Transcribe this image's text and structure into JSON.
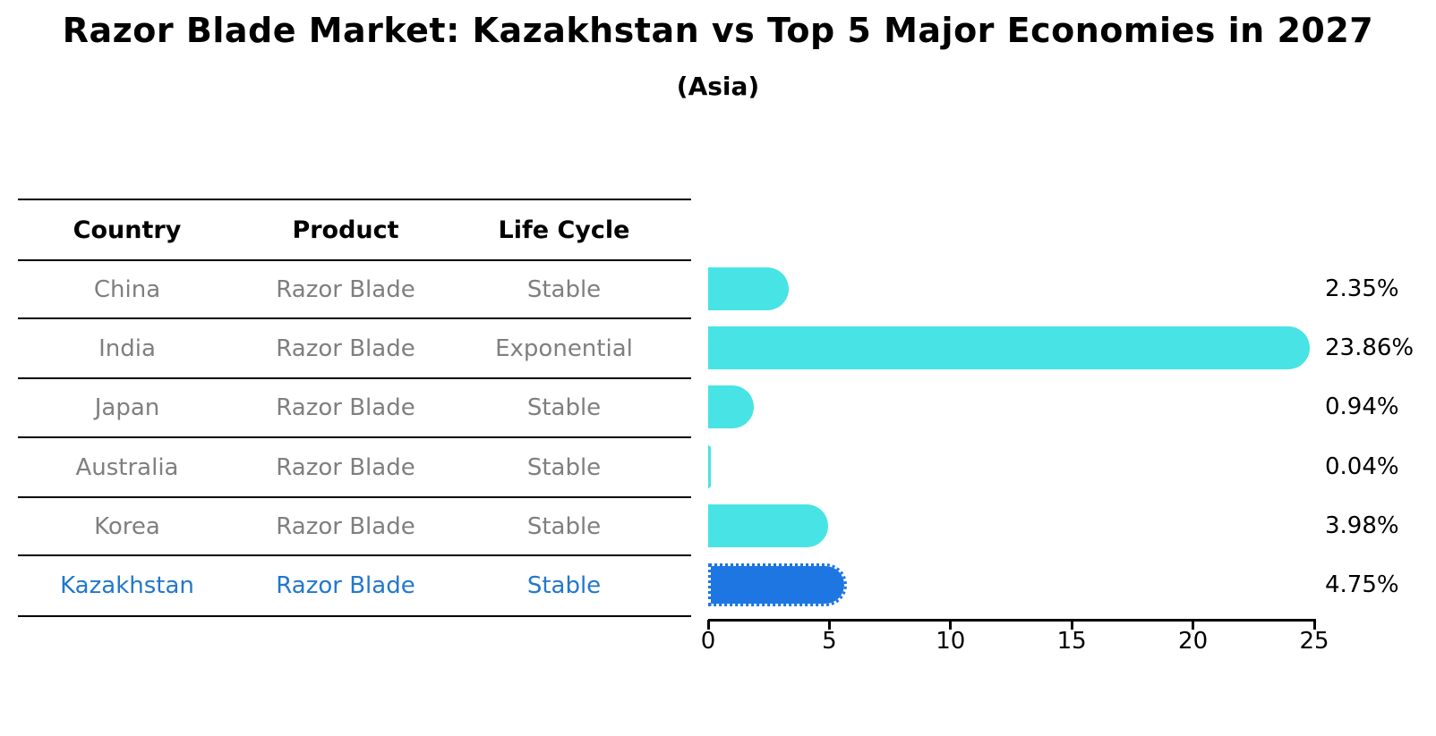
{
  "title": "Razor Blade Market: Kazakhstan vs Top 5 Major Economies in 2027",
  "subtitle": "(Asia)",
  "table": {
    "headers": [
      "Country",
      "Product",
      "Life Cycle"
    ],
    "rows": [
      {
        "country": "China",
        "product": "Razor Blade",
        "life_cycle": "Stable",
        "highlight": false
      },
      {
        "country": "India",
        "product": "Razor Blade",
        "life_cycle": "Exponential",
        "highlight": false
      },
      {
        "country": "Japan",
        "product": "Razor Blade",
        "life_cycle": "Stable",
        "highlight": false
      },
      {
        "country": "Australia",
        "product": "Razor Blade",
        "life_cycle": "Stable",
        "highlight": false
      },
      {
        "country": "Korea",
        "product": "Razor Blade",
        "life_cycle": "Stable",
        "highlight": false
      },
      {
        "country": "Kazakhstan",
        "product": "Razor Blade",
        "life_cycle": "Stable",
        "highlight": true
      }
    ]
  },
  "chart_data": {
    "type": "bar",
    "orientation": "horizontal",
    "title": "Razor Blade Market: Kazakhstan vs Top 5 Major Economies in 2027",
    "subtitle": "(Asia)",
    "categories": [
      "China",
      "India",
      "Japan",
      "Australia",
      "Korea",
      "Kazakhstan"
    ],
    "values": [
      2.35,
      23.86,
      0.94,
      0.04,
      3.98,
      4.75
    ],
    "value_labels": [
      "2.35%",
      "23.86%",
      "0.94%",
      "0.04%",
      "3.98%",
      "4.75%"
    ],
    "highlight_index": 5,
    "bar_color": "#48e3e5",
    "highlight_color": "#1d76e2",
    "xlim": [
      0,
      25
    ],
    "x_ticks": [
      0,
      5,
      10,
      15,
      20,
      25
    ],
    "xlabel": "",
    "ylabel": "",
    "grid": false,
    "legend": "none"
  },
  "colors": {
    "highlight_text": "#2278cc",
    "cell_text": "#7f7f7f",
    "bar_cyan": "#48e3e5",
    "bar_blue": "#1d76e2",
    "axis": "#000000"
  }
}
